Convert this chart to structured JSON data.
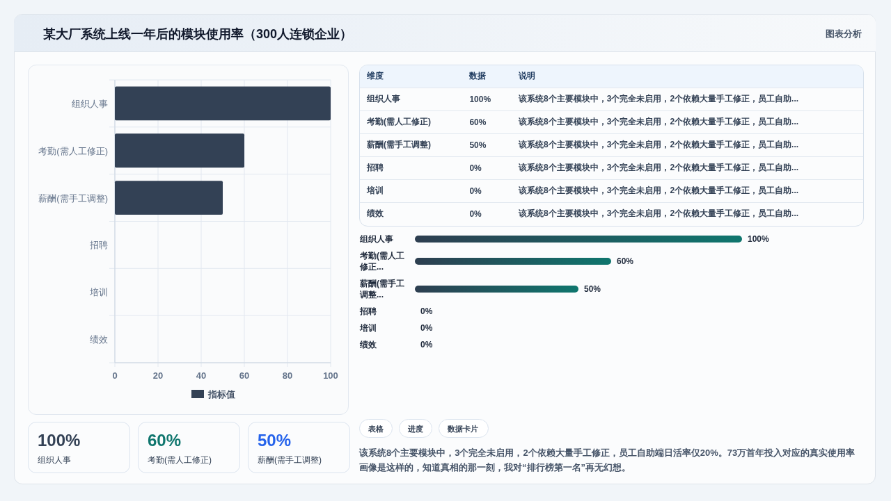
{
  "chart_data": [
    {
      "type": "bar",
      "title": "某大厂系统上线一年后的模块使用率（300人连锁企业）",
      "annotations": [
        "图表分析"
      ],
      "orientation": "horizontal",
      "categories": [
        "组织人事",
        "考勤(需人工修正)",
        "薪酬(需手工调整)",
        "招聘",
        "培训",
        "绩效"
      ],
      "series": [
        {
          "name": "指标值",
          "color": "#334155",
          "values": [
            100,
            60,
            50,
            0,
            0,
            0
          ]
        }
      ],
      "xlim": [
        0,
        100
      ],
      "xticks": [
        0,
        20,
        40,
        60,
        80,
        100
      ],
      "grid": true,
      "legend": "bottom"
    },
    {
      "type": "other",
      "categories": [
        "组织人事",
        "考勤(需人工修正)",
        "薪酬(需手工调整)",
        "招聘",
        "培训",
        "绩效"
      ],
      "value_labels": [
        "100%",
        "60%",
        "50%",
        "0%",
        "0%",
        "0%"
      ],
      "annotations": [
        "维度",
        "数据",
        "说明",
        "该系统8个主要模块中，3个完全未启用，2个依赖大量手工修正，员工自助...",
        "该系统8个主要模块中，3个完全未启用，2个依赖大量手工修正，员工自助...",
        "该系统8个主要模块中，3个完全未启用，2个依赖大量手工修正，员工自助...",
        "该系统8个主要模块中，3个完全未启用，2个依赖大量手工修正，员工自助...",
        "该系统8个主要模块中，3个完全未启用，2个依赖大量手工修正，员工自助...",
        "该系统8个主要模块中，3个完全未启用，2个依赖大量手工修正，员工自助..."
      ]
    },
    {
      "type": "bar",
      "orientation": "horizontal",
      "categories": [
        "组织人事",
        "考勤(需人工修正...",
        "薪酬(需手工调整...",
        "招聘",
        "培训",
        "绩效"
      ],
      "values": [
        100,
        60,
        50,
        0,
        0,
        0
      ],
      "value_labels": [
        "100%",
        "60%",
        "50%",
        "0%",
        "0%",
        "0%"
      ],
      "color": "#0f766e"
    },
    {
      "type": "other",
      "categories": [
        "组织人事",
        "考勤(需人工修正)",
        "薪酬(需手工调整)"
      ],
      "value_labels": [
        "100%",
        "60%",
        "50%"
      ],
      "colors": [
        "#334155",
        "#0f766e",
        "#2563eb"
      ]
    },
    {
      "type": "other",
      "annotations": [
        "表格",
        "进度",
        "数据卡片",
        "该系统8个主要模块中，3个完全未启用，2个依赖大量手工修正，员工自助端日活率仅20%。73万首年投入对应的真实使用率画像是这样的，知道真相的那一刻，我对“排行榜第一名”再无幻想。"
      ]
    }
  ]
}
